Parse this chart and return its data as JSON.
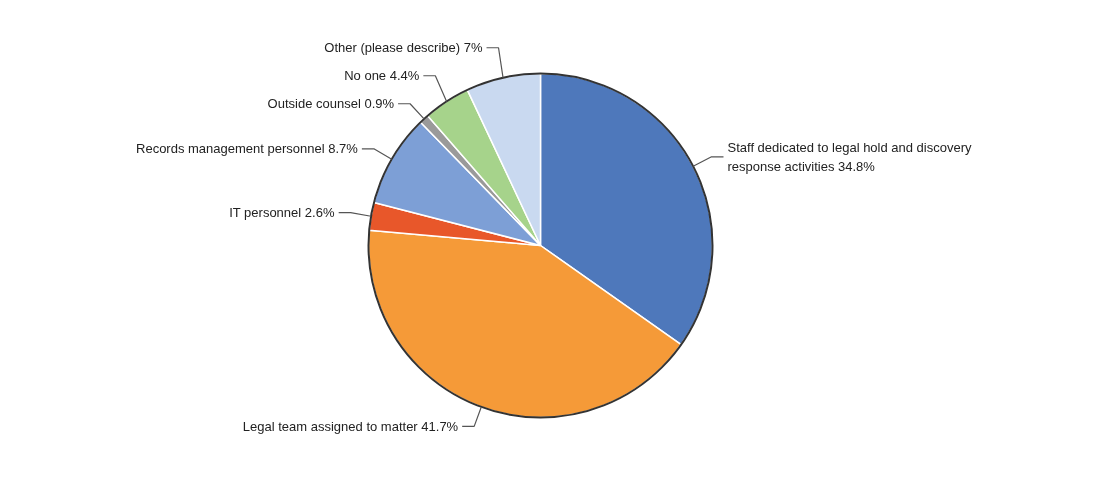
{
  "chart_data": {
    "type": "pie",
    "categories": [
      "Staff dedicated to legal hold and discovery response activities 34.8%",
      "Legal team assigned to matter 41.7%",
      "IT personnel 2.6%",
      "Records management personnel 8.7%",
      "Outside counsel 0.9%",
      "No one 4.4%",
      "Other (please describe) 7%"
    ],
    "values": [
      34.8,
      41.7,
      2.6,
      8.7,
      0.9,
      4.4,
      7
    ],
    "colors": [
      "#4e78bb",
      "#f59a38",
      "#e8572a",
      "#7d9fd6",
      "#9a9a9a",
      "#a6d38b",
      "#c9d9f0"
    ]
  }
}
